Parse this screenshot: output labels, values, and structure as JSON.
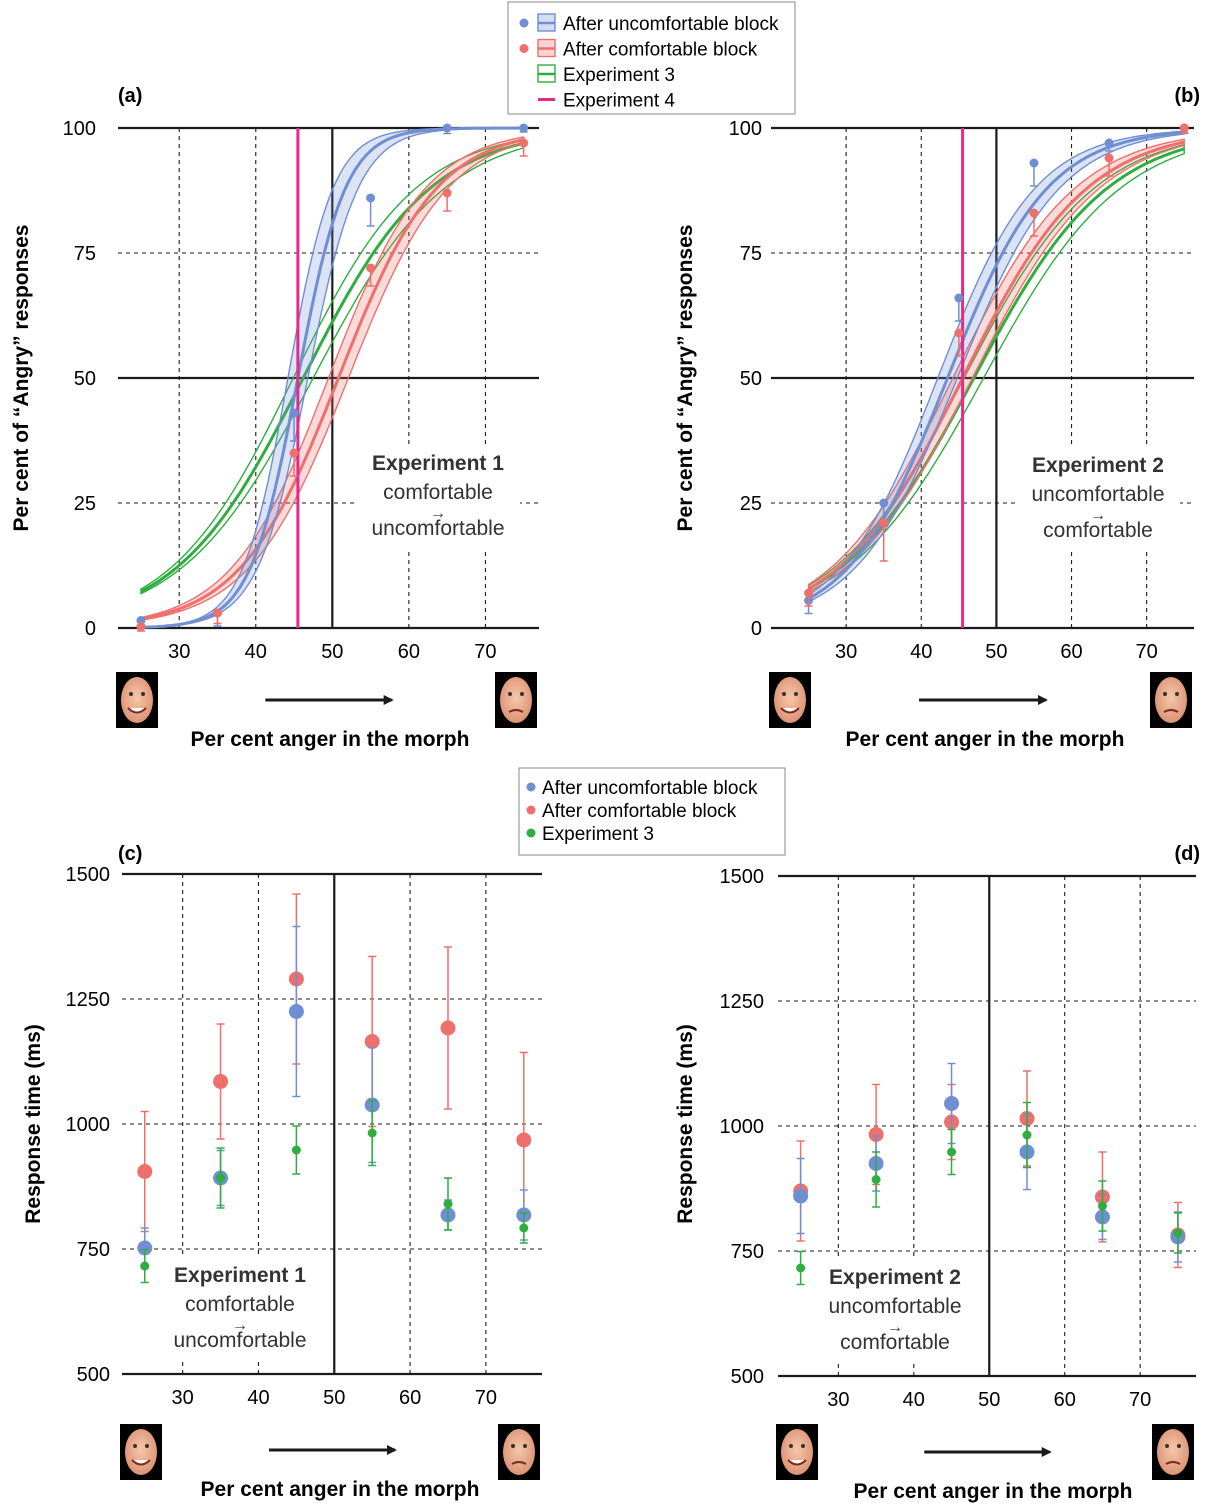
{
  "figure": {
    "legend_top": {
      "items": [
        {
          "label": "After uncomfortable block",
          "color": "#6f8fd2",
          "marker": "dot+band"
        },
        {
          "label": "After comfortable block",
          "color": "#ee6f6b",
          "marker": "dot+band"
        },
        {
          "label": "Experiment 3",
          "color": "#2fae3f",
          "marker": "band"
        },
        {
          "label": "Experiment 4",
          "color": "#e8298c",
          "marker": "line"
        }
      ]
    },
    "legend_bottom": {
      "items": [
        {
          "label": "After uncomfortable block",
          "color": "#6f8fd2"
        },
        {
          "label": "After comfortable block",
          "color": "#ee6f6b"
        },
        {
          "label": "Experiment 3",
          "color": "#2fae3f"
        }
      ]
    },
    "colors": {
      "blue": "#6f8fd2",
      "red": "#ee6f6b",
      "green": "#2fae3f",
      "pink": "#e8298c",
      "axis": "#1a1a1a"
    }
  },
  "chart_data": [
    {
      "panel": "(a)",
      "type": "line",
      "ylabel": "Per cent of “Angry” responses",
      "xlabel": "Per cent anger in the morph",
      "xticks": [
        30,
        40,
        50,
        60,
        70
      ],
      "yticks": [
        0,
        25,
        50,
        75,
        100
      ],
      "xlim": [
        22,
        77
      ],
      "ylim": [
        0,
        100
      ],
      "annotation": {
        "title": "Experiment 1",
        "line1": "comfortable",
        "arrow": "→",
        "line2": "uncomfortable"
      },
      "vline_exp4": 45.5,
      "series": [
        {
          "name": "After uncomfortable block",
          "color": "blue",
          "x": [
            25,
            35,
            45,
            55,
            65,
            75
          ],
          "y": [
            1.5,
            3,
            43,
            86,
            100,
            100
          ],
          "err": [
            0.5,
            2,
            5,
            5,
            0.5,
            0.2
          ],
          "pse": 45.5,
          "slope": 0.32,
          "band": 0.055
        },
        {
          "name": "After comfortable block",
          "color": "red",
          "x": [
            25,
            35,
            45,
            55,
            65,
            75
          ],
          "y": [
            0.3,
            3,
            35,
            72,
            87,
            97
          ],
          "err": [
            0.3,
            1.5,
            4,
            3,
            3,
            2
          ],
          "pse": 50.8,
          "slope": 0.155,
          "band": 0.013
        },
        {
          "name": "Experiment 3",
          "color": "green",
          "pse": 46.2,
          "slope": 0.12,
          "band": 0.035
        }
      ]
    },
    {
      "panel": "(b)",
      "type": "line",
      "ylabel": "Per cent of “Angry” responses",
      "xlabel": "Per cent anger in the morph",
      "xticks": [
        30,
        40,
        50,
        60,
        70
      ],
      "yticks": [
        0,
        25,
        50,
        75,
        100
      ],
      "xlim": [
        22,
        77
      ],
      "ylim": [
        0,
        100
      ],
      "annotation": {
        "title": "Experiment 2",
        "line1": "uncomfortable",
        "arrow": "→",
        "line2": "comfortable"
      },
      "vline_exp4": 45.5,
      "series": [
        {
          "name": "After uncomfortable block",
          "color": "blue",
          "x": [
            25,
            35,
            45,
            55,
            65,
            75
          ],
          "y": [
            5.5,
            25,
            66,
            93,
            97,
            100
          ],
          "err": [
            2,
            4,
            4,
            4,
            1,
            0.3
          ],
          "pse": 43.5,
          "slope": 0.15,
          "band": 0.025
        },
        {
          "name": "After comfortable block",
          "color": "red",
          "x": [
            25,
            35,
            45,
            55,
            65,
            75
          ],
          "y": [
            7,
            21,
            59,
            83,
            94,
            100
          ],
          "err": [
            2,
            7,
            4,
            4,
            3,
            0.5
          ],
          "pse": 45.5,
          "slope": 0.12,
          "band": 0.02
        },
        {
          "name": "Experiment 3",
          "color": "green",
          "pse": 47,
          "slope": 0.112,
          "band": 0.025
        }
      ]
    },
    {
      "panel": "(c)",
      "type": "scatter",
      "ylabel": "Response time (ms)",
      "xlabel": "Per cent anger in the morph",
      "xticks": [
        30,
        40,
        50,
        60,
        70
      ],
      "yticks": [
        500,
        750,
        1000,
        1250,
        1500
      ],
      "xlim": [
        22,
        77
      ],
      "ylim": [
        500,
        1500
      ],
      "annotation": {
        "title": "Experiment 1",
        "line1": "comfortable",
        "arrow": "→",
        "line2": "uncomfortable"
      },
      "series": [
        {
          "name": "After uncomfortable block",
          "color": "blue",
          "x": [
            25,
            35,
            45,
            55,
            65,
            75
          ],
          "y": [
            752,
            892,
            1225,
            1038,
            818,
            818
          ],
          "err": [
            40,
            55,
            170,
            115,
            30,
            50
          ]
        },
        {
          "name": "After comfortable block",
          "color": "red",
          "x": [
            25,
            35,
            45,
            55,
            65,
            75
          ],
          "y": [
            905,
            1085,
            1290,
            1165,
            1192,
            968
          ],
          "err": [
            120,
            115,
            170,
            170,
            162,
            175
          ]
        },
        {
          "name": "Experiment 3",
          "color": "green",
          "x": [
            25,
            35,
            45,
            55,
            65,
            75
          ],
          "y": [
            716,
            892,
            948,
            982,
            840,
            792
          ],
          "err": [
            33,
            60,
            48,
            65,
            52,
            30
          ]
        }
      ]
    },
    {
      "panel": "(d)",
      "type": "scatter",
      "ylabel": "Response time (ms)",
      "xlabel": "Per cent anger in the morph",
      "xticks": [
        30,
        40,
        50,
        60,
        70
      ],
      "yticks": [
        500,
        750,
        1000,
        1250,
        1500
      ],
      "xlim": [
        22,
        77
      ],
      "ylim": [
        500,
        1500
      ],
      "annotation": {
        "title": "Experiment 2",
        "line1": "uncomfortable",
        "arrow": "→",
        "line2": "comfortable"
      },
      "series": [
        {
          "name": "After uncomfortable block",
          "color": "blue",
          "x": [
            25,
            35,
            45,
            55,
            65,
            75
          ],
          "y": [
            860,
            925,
            1045,
            948,
            818,
            778
          ],
          "err": [
            75,
            55,
            80,
            75,
            45,
            50
          ]
        },
        {
          "name": "After comfortable block",
          "color": "red",
          "x": [
            25,
            35,
            45,
            55,
            65,
            75
          ],
          "y": [
            870,
            983,
            1008,
            1015,
            858,
            782
          ],
          "err": [
            100,
            100,
            75,
            95,
            90,
            65
          ]
        },
        {
          "name": "Experiment 3",
          "color": "green",
          "x": [
            25,
            35,
            45,
            55,
            65,
            75
          ],
          "y": [
            716,
            893,
            948,
            982,
            840,
            786
          ],
          "err": [
            33,
            55,
            45,
            65,
            50,
            40
          ]
        }
      ]
    }
  ]
}
